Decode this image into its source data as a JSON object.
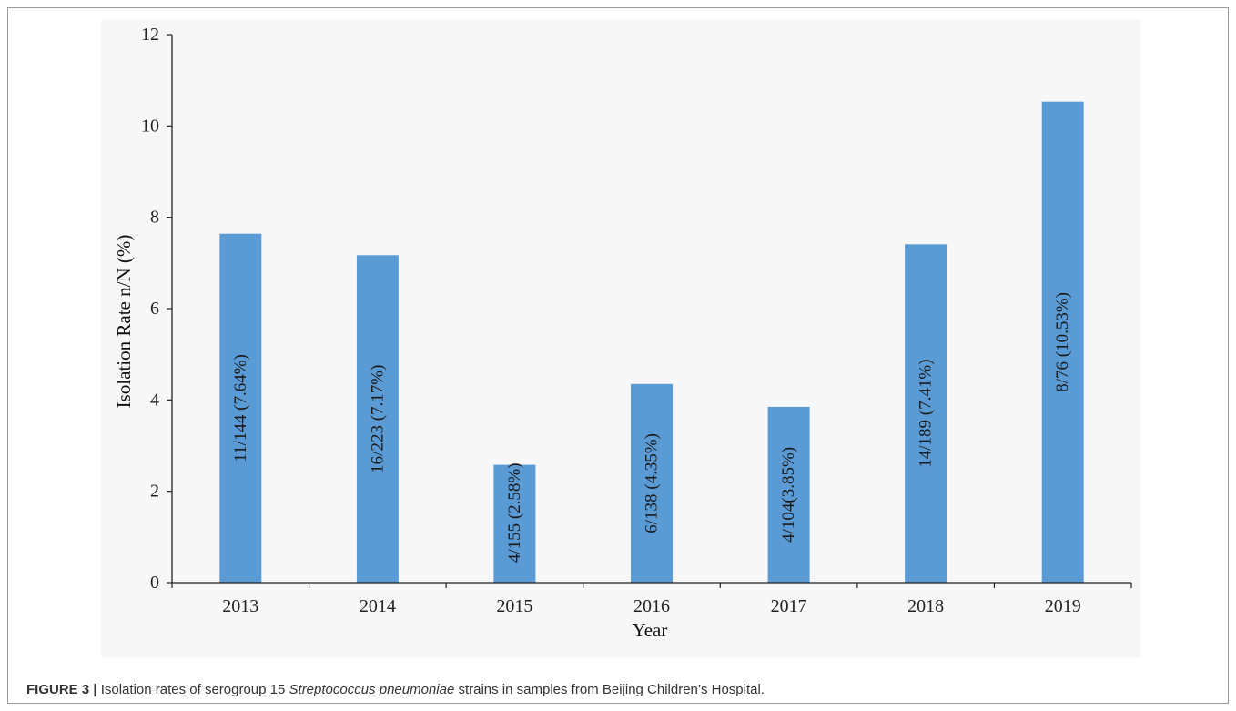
{
  "chart_data": {
    "type": "bar",
    "categories": [
      "2013",
      "2014",
      "2015",
      "2016",
      "2017",
      "2018",
      "2019"
    ],
    "values": [
      7.64,
      7.17,
      2.58,
      4.35,
      3.85,
      7.41,
      10.53
    ],
    "bar_labels": [
      "11/144 (7.64%)",
      "16/223 (7.17%)",
      "4/155 (2.58%)",
      "6/138 (4.35%)",
      "4/104(3.85%)",
      "14/189 (7.41%)",
      "8/76 (10.53%)"
    ],
    "xlabel": "Year",
    "ylabel": "Isolation Rate n/N (%)",
    "ylim": [
      0,
      12
    ],
    "yticks": [
      0,
      2,
      4,
      6,
      8,
      10,
      12
    ],
    "bar_color": "#5b9bd5",
    "grid": false,
    "legend": "none"
  },
  "caption": {
    "label": "FIGURE 3 |",
    "text_before": " Isolation rates of serogroup 15 ",
    "species": "Streptococcus pneumoniae",
    "text_after": " strains in samples from Beijing Children’s Hospital."
  }
}
